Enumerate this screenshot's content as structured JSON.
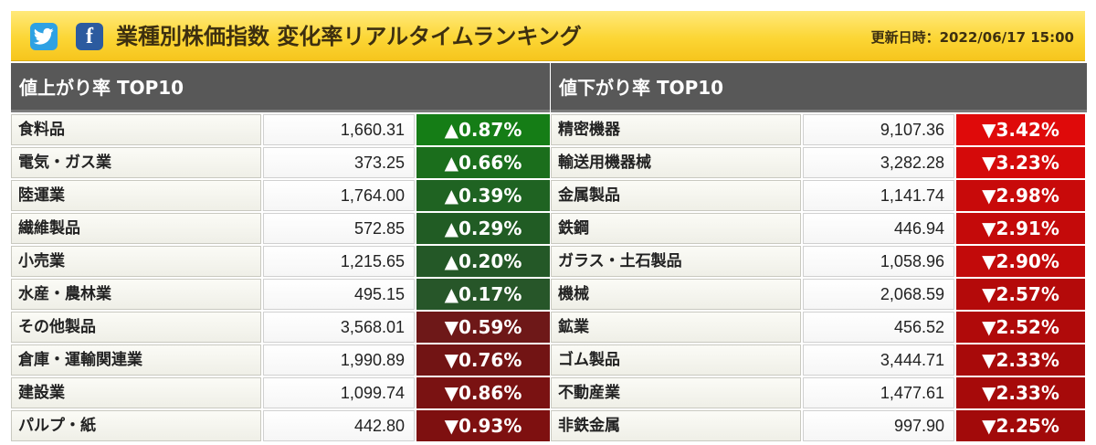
{
  "header": {
    "twitter_icon": "twitter-icon",
    "facebook_icon": "facebook-icon",
    "facebook_glyph": "f",
    "title": "業種別株価指数 変化率リアルタイムランキング",
    "updated": "更新日時：2022/06/17 15:00",
    "bg_color": "#fcd635"
  },
  "gainers": {
    "title": "値上がり率 TOP10",
    "rows": [
      {
        "name": "食料品",
        "value": "1,660.31",
        "change": "▲0.87%",
        "color": "#157d16"
      },
      {
        "name": "電気・ガス業",
        "value": "373.25",
        "change": "▲0.66%",
        "color": "#1b6e1c"
      },
      {
        "name": "陸運業",
        "value": "1,764.00",
        "change": "▲0.39%",
        "color": "#1f6322"
      },
      {
        "name": "繊維製品",
        "value": "572.85",
        "change": "▲0.29%",
        "color": "#215c24"
      },
      {
        "name": "小売業",
        "value": "1,215.65",
        "change": "▲0.20%",
        "color": "#245827"
      },
      {
        "name": "水産・農林業",
        "value": "495.15",
        "change": "▲0.17%",
        "color": "#275629"
      },
      {
        "name": "その他製品",
        "value": "3,568.01",
        "change": "▼0.59%",
        "color": "#6e1818"
      },
      {
        "name": "倉庫・運輸関連業",
        "value": "1,990.89",
        "change": "▼0.76%",
        "color": "#721414"
      },
      {
        "name": "建設業",
        "value": "1,099.74",
        "change": "▼0.86%",
        "color": "#7a1212"
      },
      {
        "name": "パルプ・紙",
        "value": "442.80",
        "change": "▼0.93%",
        "color": "#7e1010"
      }
    ]
  },
  "losers": {
    "title": "値下がり率 TOP10",
    "rows": [
      {
        "name": "精密機器",
        "value": "9,107.36",
        "change": "▼3.42%",
        "color": "#df0a0a"
      },
      {
        "name": "輸送用機器械",
        "value": "3,282.28",
        "change": "▼3.23%",
        "color": "#d50a0a"
      },
      {
        "name": "金属製品",
        "value": "1,141.74",
        "change": "▼2.98%",
        "color": "#c80a0a"
      },
      {
        "name": "鉄鋼",
        "value": "446.94",
        "change": "▼2.91%",
        "color": "#c40a0a"
      },
      {
        "name": "ガラス・土石製品",
        "value": "1,058.96",
        "change": "▼2.90%",
        "color": "#c20a0a"
      },
      {
        "name": "機械",
        "value": "2,068.59",
        "change": "▼2.57%",
        "color": "#b40a0a"
      },
      {
        "name": "鉱業",
        "value": "456.52",
        "change": "▼2.52%",
        "color": "#b00a0a"
      },
      {
        "name": "ゴム製品",
        "value": "3,444.71",
        "change": "▼2.33%",
        "color": "#a80a0a"
      },
      {
        "name": "不動産業",
        "value": "1,477.61",
        "change": "▼2.33%",
        "color": "#a60a0a"
      },
      {
        "name": "非鉄金属",
        "value": "997.90",
        "change": "▼2.25%",
        "color": "#a20a0a"
      }
    ]
  }
}
